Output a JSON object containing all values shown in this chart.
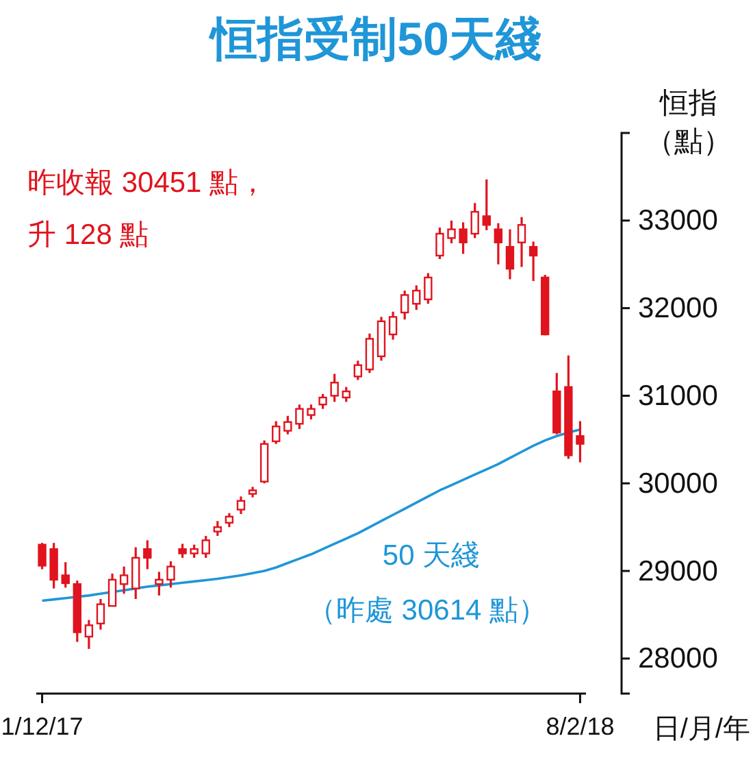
{
  "chart_data": {
    "type": "candlestick",
    "title": "恒指受制50天綫",
    "xlabel": "日/月/年",
    "ylabel": "恒指（點）",
    "categories": [
      "1/12/17",
      null,
      null,
      null,
      null,
      null,
      null,
      null,
      null,
      null,
      null,
      null,
      null,
      null,
      null,
      null,
      null,
      null,
      null,
      null,
      null,
      null,
      null,
      null,
      null,
      null,
      null,
      null,
      null,
      null,
      null,
      null,
      null,
      null,
      null,
      null,
      null,
      null,
      null,
      null,
      null,
      null,
      null,
      null,
      null,
      null,
      "8/2/18"
    ],
    "color": "#e0141e",
    "ohlc": [
      [
        29300,
        29320,
        29020,
        29060
      ],
      [
        29250,
        29320,
        28800,
        28900
      ],
      [
        28950,
        29100,
        28810,
        28860
      ],
      [
        28850,
        28890,
        28190,
        28300
      ],
      [
        28250,
        28440,
        28110,
        28380
      ],
      [
        28400,
        28680,
        28330,
        28620
      ],
      [
        28600,
        28970,
        28600,
        28900
      ],
      [
        28850,
        29050,
        28740,
        28950
      ],
      [
        28800,
        29270,
        28680,
        29150
      ],
      [
        29250,
        29350,
        29020,
        29150
      ],
      [
        28850,
        28990,
        28720,
        28900
      ],
      [
        28900,
        29110,
        28810,
        29050
      ],
      [
        29250,
        29310,
        29150,
        29200
      ],
      [
        29200,
        29300,
        29150,
        29250
      ],
      [
        29200,
        29400,
        29150,
        29350
      ],
      [
        29450,
        29570,
        29400,
        29500
      ],
      [
        29550,
        29660,
        29500,
        29620
      ],
      [
        29700,
        29850,
        29650,
        29800
      ],
      [
        29880,
        29960,
        29840,
        29920
      ],
      [
        30020,
        30490,
        30000,
        30450
      ],
      [
        30480,
        30710,
        30450,
        30650
      ],
      [
        30600,
        30770,
        30560,
        30700
      ],
      [
        30680,
        30900,
        30620,
        30850
      ],
      [
        30780,
        30900,
        30730,
        30850
      ],
      [
        30900,
        31020,
        30850,
        30980
      ],
      [
        31000,
        31250,
        30930,
        31150
      ],
      [
        30980,
        31100,
        30930,
        31050
      ],
      [
        31220,
        31400,
        31180,
        31350
      ],
      [
        31300,
        31710,
        31260,
        31650
      ],
      [
        31450,
        31900,
        31400,
        31850
      ],
      [
        31700,
        31960,
        31640,
        31900
      ],
      [
        31950,
        32200,
        31870,
        32150
      ],
      [
        32050,
        32260,
        31980,
        32200
      ],
      [
        32100,
        32400,
        32050,
        32350
      ],
      [
        32600,
        32920,
        32560,
        32850
      ],
      [
        32800,
        33000,
        32740,
        32900
      ],
      [
        32900,
        32980,
        32620,
        32750
      ],
      [
        32850,
        33200,
        32800,
        33100
      ],
      [
        33050,
        33470,
        32890,
        32950
      ],
      [
        32900,
        32970,
        32500,
        32750
      ],
      [
        32700,
        32900,
        32330,
        32450
      ],
      [
        32750,
        33040,
        32470,
        32950
      ],
      [
        32700,
        32760,
        32310,
        32600
      ],
      [
        32350,
        32380,
        31690,
        31700
      ],
      [
        31050,
        31260,
        30560,
        30580
      ],
      [
        31100,
        31460,
        30280,
        30320
      ],
      [
        30540,
        30710,
        30240,
        30451
      ]
    ],
    "series": [
      {
        "type": "line",
        "name": "50 天綫",
        "color": "#1f96d8",
        "values": [
          28660,
          28675,
          28690,
          28705,
          28720,
          28740,
          28760,
          28780,
          28800,
          28820,
          28835,
          28850,
          28865,
          28880,
          28895,
          28910,
          28930,
          28950,
          28975,
          29000,
          29040,
          29090,
          29140,
          29190,
          29250,
          29310,
          29370,
          29430,
          29500,
          29570,
          29640,
          29710,
          29780,
          29850,
          29920,
          29980,
          30040,
          30100,
          30160,
          30220,
          30290,
          30360,
          30430,
          30490,
          30540,
          30580,
          30614
        ]
      }
    ],
    "ylim": [
      27600,
      34000
    ],
    "yticks": [
      28000,
      29000,
      30000,
      31000,
      32000,
      33000
    ],
    "annotations": [
      "昨收報 30451 點，升 128 點",
      "（昨處 30614 點）"
    ]
  }
}
